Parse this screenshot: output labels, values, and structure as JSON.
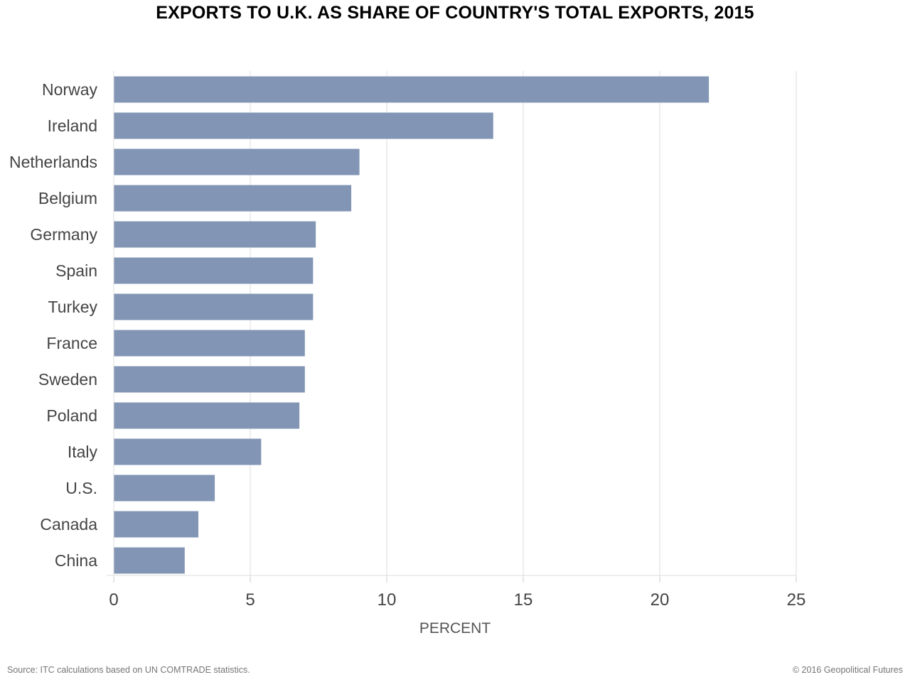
{
  "chart_data": {
    "type": "bar",
    "orientation": "horizontal",
    "title": "EXPORTS TO U.K. AS SHARE OF COUNTRY'S TOTAL EXPORTS, 2015",
    "xlabel": "PERCENT",
    "ylabel": "",
    "xlim": [
      0,
      25
    ],
    "xticks": [
      0,
      5,
      10,
      15,
      20,
      25
    ],
    "grid": true,
    "categories": [
      "Norway",
      "Ireland",
      "Netherlands",
      "Belgium",
      "Germany",
      "Spain",
      "Turkey",
      "France",
      "Sweden",
      "Poland",
      "Italy",
      "U.S.",
      "Canada",
      "China"
    ],
    "values": [
      21.8,
      13.9,
      9.0,
      8.7,
      7.4,
      7.3,
      7.3,
      7.0,
      7.0,
      6.8,
      5.4,
      3.7,
      3.1,
      2.6
    ],
    "bar_color": "#7f93b4"
  },
  "footer": {
    "source": "Source: ITC calculations based on UN COMTRADE statistics.",
    "copyright": "© 2016 Geopolitical Futures"
  }
}
